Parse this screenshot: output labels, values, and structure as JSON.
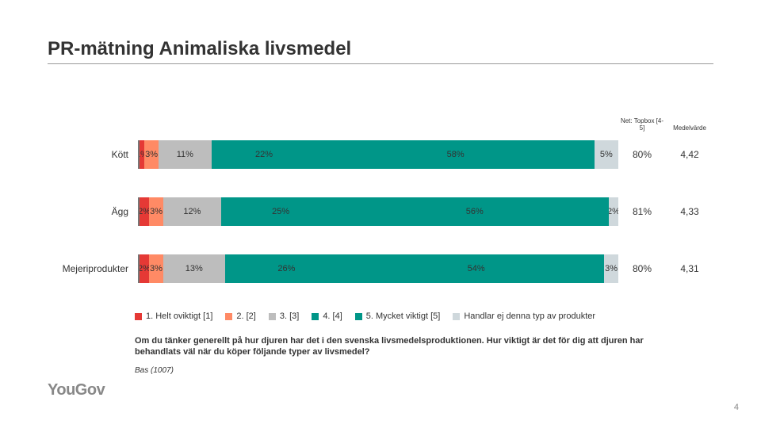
{
  "title": "PR-mätning Animaliska livsmedel",
  "headers": {
    "topbox": "Net: Topbox [4-5]",
    "medel": "Medelvärde"
  },
  "colors": {
    "s1": "#e53935",
    "s2": "#ff8a65",
    "s3": "#bdbdbd",
    "s4": "#009688",
    "s5": "#009688",
    "s6": "#cfd8dc"
  },
  "rows": [
    {
      "label": "Kött",
      "segs": [
        {
          "v": 1,
          "t": "1%"
        },
        {
          "v": 3,
          "t": "3%"
        },
        {
          "v": 11,
          "t": "11%"
        },
        {
          "v": 22,
          "t": "22%"
        },
        {
          "v": 58,
          "t": "58%"
        },
        {
          "v": 5,
          "t": "5%"
        }
      ],
      "topbox": "80%",
      "medel": "4,42"
    },
    {
      "label": "Ägg",
      "segs": [
        {
          "v": 2,
          "t": "2%"
        },
        {
          "v": 3,
          "t": "3%"
        },
        {
          "v": 12,
          "t": "12%"
        },
        {
          "v": 25,
          "t": "25%"
        },
        {
          "v": 56,
          "t": "56%"
        },
        {
          "v": 2,
          "t": "2%"
        }
      ],
      "topbox": "81%",
      "medel": "4,33"
    },
    {
      "label": "Mejeriprodukter",
      "segs": [
        {
          "v": 2,
          "t": "2%"
        },
        {
          "v": 3,
          "t": "3%"
        },
        {
          "v": 13,
          "t": "13%"
        },
        {
          "v": 26,
          "t": "26%"
        },
        {
          "v": 54,
          "t": "54%"
        },
        {
          "v": 3,
          "t": "3%"
        }
      ],
      "topbox": "80%",
      "medel": "4,31"
    }
  ],
  "legend": [
    {
      "c": "#e53935",
      "t": "1. Helt oviktigt [1]"
    },
    {
      "c": "#ff8a65",
      "t": "2. [2]"
    },
    {
      "c": "#bdbdbd",
      "t": "3. [3]"
    },
    {
      "c": "#009688",
      "t": "4. [4]"
    },
    {
      "c": "#009688",
      "t": "5. Mycket viktigt [5]"
    },
    {
      "c": "#cfd8dc",
      "t": "Handlar ej denna typ av produkter"
    }
  ],
  "question": "Om du tänker generellt på hur djuren har det i den svenska livsmedelsproduktionen. Hur viktigt är det för dig att djuren har behandlats väl när du köper följande typer av livsmedel?",
  "base": "Bas (1007)",
  "logo": "YouGov",
  "page": "4"
}
